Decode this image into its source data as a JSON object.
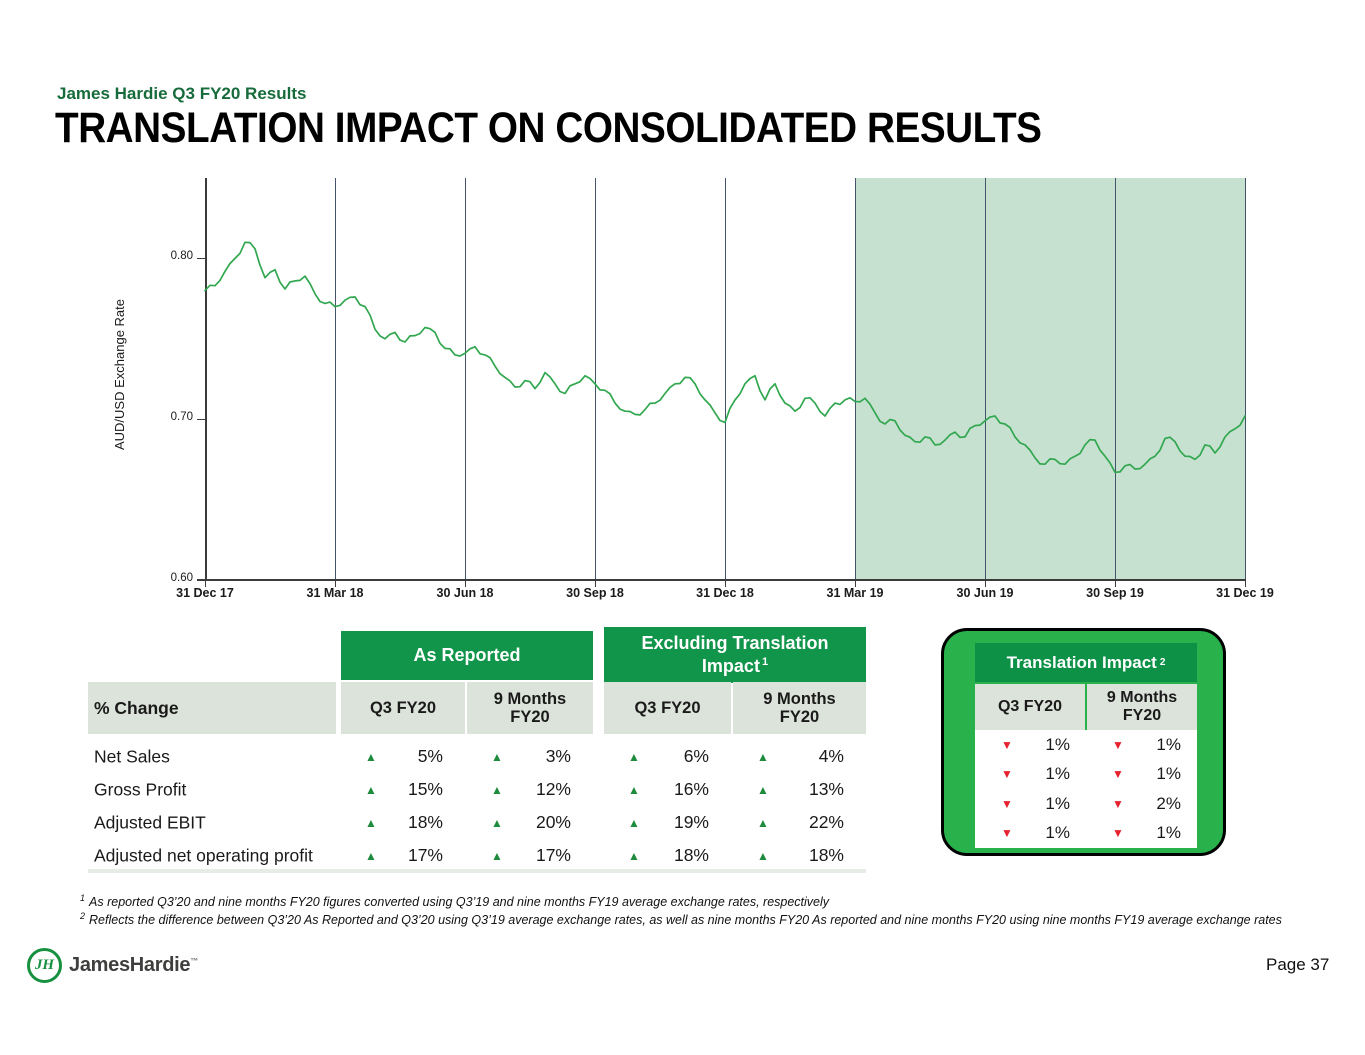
{
  "slide": {
    "eyebrow": "James Hardie Q3 FY20 Results",
    "title": "TRANSLATION IMPACT ON CONSOLIDATED RESULTS",
    "page_label": "Page 37",
    "logo_text": "JamesHardie",
    "logo_monogram": "JH",
    "logo_tm": "™"
  },
  "colors": {
    "brand_green": "#11954B",
    "box_green": "#29B24C",
    "box_header_green": "#0C9147",
    "band_gray_green": "#DCE3DA",
    "eyebrow_green": "#176B3B",
    "positive_green": "#1E8C3C",
    "negative_red": "#E8212E",
    "gridline_slate": "#44546A"
  },
  "chart_data": {
    "type": "line",
    "title": "",
    "xlabel": "",
    "ylabel": "AUD/USD Exchange Rate",
    "ylim": [
      0.6,
      0.85
    ],
    "yticks": [
      0.6,
      0.7,
      0.8
    ],
    "grid": "vertical-quarter-lines",
    "x_tick_labels": [
      "31 Dec 17",
      "31 Mar 18",
      "30 Jun 18",
      "30 Sep 18",
      "31 Dec 18",
      "31 Mar 19",
      "30 Jun 19",
      "30 Sep 19",
      "31 Dec 19"
    ],
    "highlight": {
      "from": "31 Mar 19",
      "to": "31 Dec 19",
      "color": "#C7E1D1"
    },
    "series": [
      {
        "name": "AUD/USD exchange rate (weekly, 31 Dec 17 – 31 Dec 19)",
        "color": "#31A74F",
        "values": [
          0.78,
          0.783,
          0.792,
          0.8,
          0.81,
          0.806,
          0.788,
          0.793,
          0.781,
          0.786,
          0.789,
          0.778,
          0.772,
          0.77,
          0.774,
          0.776,
          0.77,
          0.756,
          0.75,
          0.754,
          0.748,
          0.752,
          0.757,
          0.754,
          0.744,
          0.74,
          0.741,
          0.745,
          0.74,
          0.733,
          0.726,
          0.72,
          0.724,
          0.719,
          0.729,
          0.722,
          0.716,
          0.722,
          0.727,
          0.722,
          0.718,
          0.71,
          0.705,
          0.703,
          0.706,
          0.71,
          0.716,
          0.722,
          0.726,
          0.722,
          0.712,
          0.704,
          0.698,
          0.712,
          0.722,
          0.727,
          0.712,
          0.722,
          0.71,
          0.705,
          0.713,
          0.71,
          0.702,
          0.71,
          0.712,
          0.711,
          0.713,
          0.704,
          0.697,
          0.699,
          0.69,
          0.686,
          0.689,
          0.684,
          0.687,
          0.692,
          0.689,
          0.696,
          0.699,
          0.702,
          0.697,
          0.689,
          0.684,
          0.676,
          0.672,
          0.675,
          0.672,
          0.677,
          0.684,
          0.687,
          0.677,
          0.667,
          0.671,
          0.669,
          0.672,
          0.677,
          0.688,
          0.686,
          0.677,
          0.675,
          0.684,
          0.679,
          0.689,
          0.694,
          0.702
        ]
      }
    ]
  },
  "table": {
    "row_header": "% Change",
    "col_groups": [
      {
        "label": "As Reported",
        "superscript": ""
      },
      {
        "label": "Excluding Translation Impact",
        "superscript": "1"
      }
    ],
    "sub_headers": [
      "Q3 FY20",
      "9 Months FY20"
    ],
    "rows": [
      {
        "label": "Net Sales",
        "cells": [
          {
            "dir": "up",
            "value": "5%"
          },
          {
            "dir": "up",
            "value": "3%"
          },
          {
            "dir": "up",
            "value": "6%"
          },
          {
            "dir": "up",
            "value": "4%"
          }
        ]
      },
      {
        "label": "Gross Profit",
        "cells": [
          {
            "dir": "up",
            "value": "15%"
          },
          {
            "dir": "up",
            "value": "12%"
          },
          {
            "dir": "up",
            "value": "16%"
          },
          {
            "dir": "up",
            "value": "13%"
          }
        ]
      },
      {
        "label": "Adjusted EBIT",
        "cells": [
          {
            "dir": "up",
            "value": "18%"
          },
          {
            "dir": "up",
            "value": "20%"
          },
          {
            "dir": "up",
            "value": "19%"
          },
          {
            "dir": "up",
            "value": "22%"
          }
        ]
      },
      {
        "label": "Adjusted net operating profit",
        "cells": [
          {
            "dir": "up",
            "value": "17%"
          },
          {
            "dir": "up",
            "value": "17%"
          },
          {
            "dir": "up",
            "value": "18%"
          },
          {
            "dir": "up",
            "value": "18%"
          }
        ]
      }
    ]
  },
  "impact_box": {
    "title": "Translation Impact",
    "superscript": "2",
    "sub_headers": [
      "Q3 FY20",
      "9 Months FY20"
    ],
    "rows": [
      [
        {
          "dir": "down",
          "value": "1%"
        },
        {
          "dir": "down",
          "value": "1%"
        }
      ],
      [
        {
          "dir": "down",
          "value": "1%"
        },
        {
          "dir": "down",
          "value": "1%"
        }
      ],
      [
        {
          "dir": "down",
          "value": "1%"
        },
        {
          "dir": "down",
          "value": "2%"
        }
      ],
      [
        {
          "dir": "down",
          "value": "1%"
        },
        {
          "dir": "down",
          "value": "1%"
        }
      ]
    ]
  },
  "footnotes": [
    {
      "sup": "1",
      "text": "As reported Q3’20 and nine months FY20 figures converted using Q3’19 and nine months FY19 average exchange rates, respectively"
    },
    {
      "sup": "2",
      "text": "Reflects the difference between Q3’20 As Reported and Q3’20 using Q3’19 average exchange rates, as well as nine months FY20 As reported and nine months FY20 using nine months FY19 average exchange rates"
    }
  ]
}
